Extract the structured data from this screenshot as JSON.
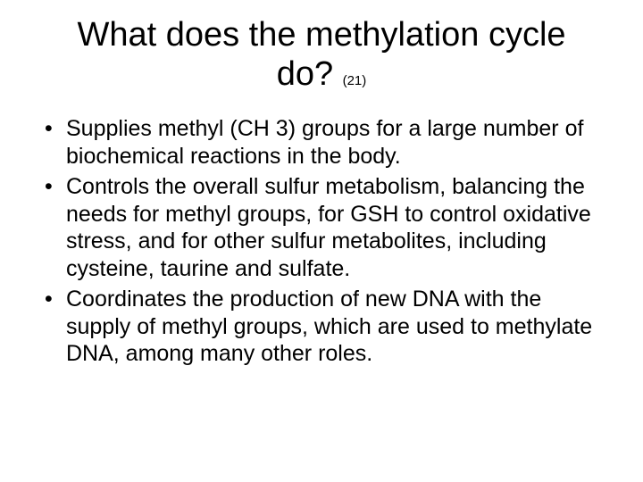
{
  "slide": {
    "title": "What does the methylation cycle do?",
    "title_ref": "(21)",
    "bullets": [
      "Supplies methyl (CH 3) groups for a large number of biochemical reactions in the body.",
      "Controls the overall sulfur metabolism, balancing the needs for methyl groups, for GSH to control oxidative stress, and for other sulfur metabolites, including cysteine, taurine and sulfate.",
      "Coordinates the production of new DNA with the supply of methyl groups, which are used to methylate DNA, among many other roles."
    ]
  },
  "style": {
    "background_color": "#ffffff",
    "text_color": "#000000",
    "title_fontsize": 38,
    "title_ref_fontsize": 15,
    "body_fontsize": 25,
    "font_family": "Arial"
  }
}
